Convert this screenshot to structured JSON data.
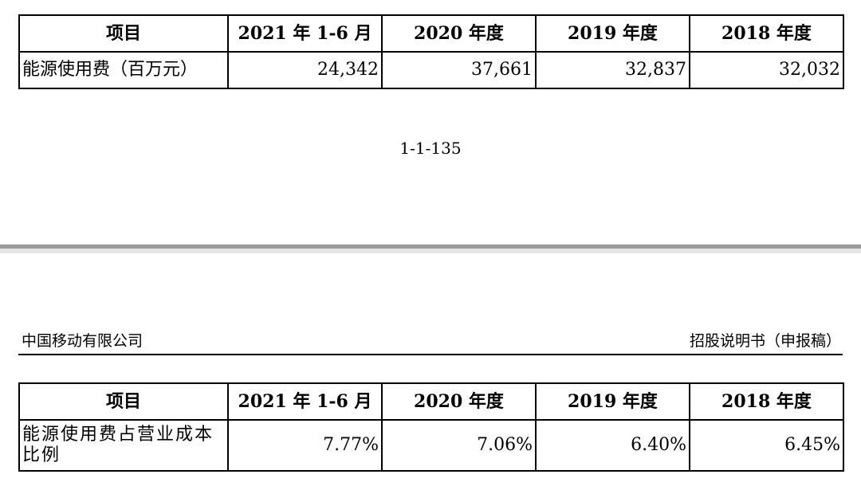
{
  "page_top": {
    "table": {
      "headers": [
        "项目",
        "2021 年 1-6 月",
        "2020 年度",
        "2019 年度",
        "2018 年度"
      ],
      "row": {
        "label": "能源使用费（百万元）",
        "values": [
          "24,342",
          "37,661",
          "32,837",
          "32,032"
        ]
      }
    },
    "page_number": "1-1-135"
  },
  "page_bottom": {
    "header": {
      "company": "中国移动有限公司",
      "document": "招股说明书（申报稿）"
    },
    "table": {
      "headers": [
        "项目",
        "2021 年 1-6 月",
        "2020 年度",
        "2019 年度",
        "2018 年度"
      ],
      "row": {
        "label": "能源使用费占营业成本比例",
        "values": [
          "7.77%",
          "7.06%",
          "6.40%",
          "6.45%"
        ]
      }
    }
  }
}
